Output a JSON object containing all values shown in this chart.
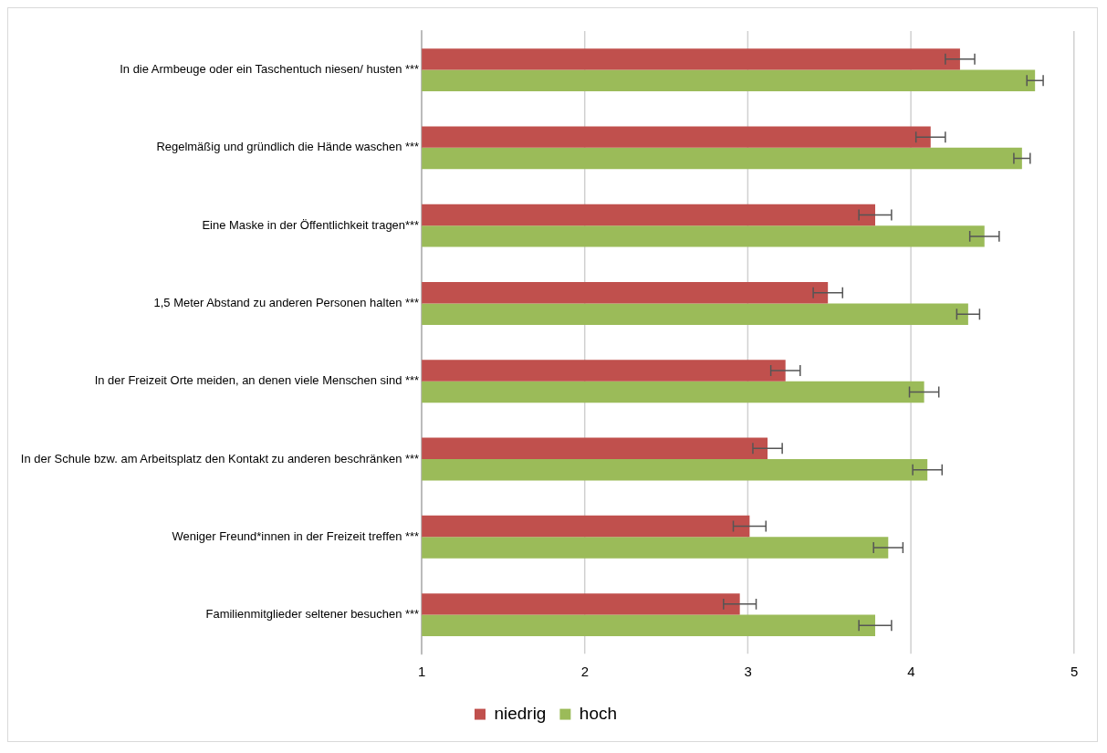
{
  "chart_data": {
    "type": "bar",
    "orientation": "horizontal",
    "categories": [
      "In die Armbeuge oder ein Taschentuch niesen/ husten ***",
      "Regelmäßig und gründlich die Hände waschen ***",
      "Eine Maske in der Öffentlichkeit tragen***",
      "1,5 Meter Abstand zu anderen Personen halten ***",
      "In der Freizeit Orte meiden, an denen viele Menschen sind ***",
      "In der Schule bzw. am Arbeitsplatz den Kontakt zu anderen beschränken ***",
      "Weniger Freund*innen in der Freizeit treffen ***",
      "Familienmitglieder seltener besuchen ***"
    ],
    "series": [
      {
        "name": "niedrig",
        "color": "#c0504d",
        "values": [
          4.3,
          4.12,
          3.78,
          3.49,
          3.23,
          3.12,
          3.01,
          2.95
        ],
        "errors": [
          0.09,
          0.09,
          0.1,
          0.09,
          0.09,
          0.09,
          0.1,
          0.1
        ]
      },
      {
        "name": "hoch",
        "color": "#9bbb59",
        "values": [
          4.76,
          4.68,
          4.45,
          4.35,
          4.08,
          4.1,
          3.86,
          3.78
        ],
        "errors": [
          0.05,
          0.05,
          0.09,
          0.07,
          0.09,
          0.09,
          0.09,
          0.1
        ]
      }
    ],
    "xlim": [
      1,
      5
    ],
    "xticks": [
      1,
      2,
      3,
      4,
      5
    ],
    "grid": "x",
    "legend": "bottom"
  }
}
